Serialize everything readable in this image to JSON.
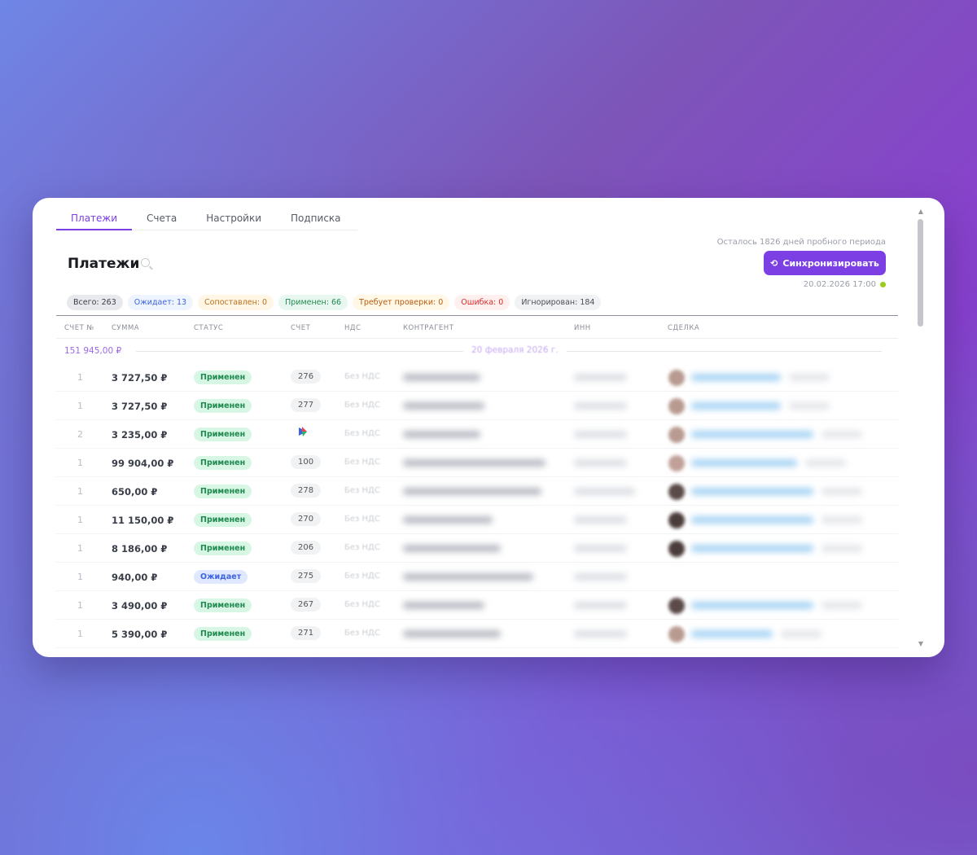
{
  "tabs": [
    {
      "label": "Платежи",
      "active": true
    },
    {
      "label": "Счета"
    },
    {
      "label": "Настройки"
    },
    {
      "label": "Подписка"
    }
  ],
  "page_title": "Платежи",
  "trial_text": "Осталось 1826 дней пробного периода",
  "sync_button": "Синхронизировать",
  "sync_date": "20.02.2026 17:00",
  "sync_status_color": "#9ccc1a",
  "accent": "#7b3fe4",
  "chips": [
    {
      "label": "Всего: 263",
      "bg": "#e8e9ec",
      "fg": "#3a3e48"
    },
    {
      "label": "Ожидает: 13",
      "bg": "#eef5ff",
      "fg": "#3d63e0"
    },
    {
      "label": "Сопоставлен: 0",
      "bg": "#fff6e6",
      "fg": "#c0701a"
    },
    {
      "label": "Применен: 66",
      "bg": "#e8f8f0",
      "fg": "#1f8a50"
    },
    {
      "label": "Требует проверки: 0",
      "bg": "#fff8e6",
      "fg": "#b85a10"
    },
    {
      "label": "Ошибка: 0",
      "bg": "#fff0f0",
      "fg": "#e02a2a"
    },
    {
      "label": "Игнорирован: 184",
      "bg": "#f1f2f4",
      "fg": "#4a4e58"
    }
  ],
  "columns": [
    "СЧЕТ №",
    "СУММА",
    "СТАТУС",
    "СЧЕТ",
    "НДС",
    "КОНТРАГЕНТ",
    "ИНН",
    "СДЕЛКА"
  ],
  "group": {
    "sum": "151 945,00 ₽",
    "date": "20 февраля 2026 г."
  },
  "rows": [
    {
      "num": "1",
      "sum": "3 727,50 ₽",
      "status": "Применен",
      "account": "276",
      "nds": "Без НДС",
      "deal": true
    },
    {
      "num": "1",
      "sum": "3 727,50 ₽",
      "status": "Применен",
      "account": "277",
      "nds": "Без НДС",
      "deal": true
    },
    {
      "num": "2",
      "sum": "3 235,00 ₽",
      "status": "Применен",
      "account": "",
      "account_icon": "multicolor-logo-icon",
      "nds": "Без НДС",
      "deal": true
    },
    {
      "num": "1",
      "sum": "99 904,00 ₽",
      "status": "Применен",
      "account": "100",
      "nds": "Без НДС",
      "deal": true
    },
    {
      "num": "1",
      "sum": "650,00 ₽",
      "status": "Применен",
      "account": "278",
      "nds": "Без НДС",
      "deal": true
    },
    {
      "num": "1",
      "sum": "11 150,00 ₽",
      "status": "Применен",
      "account": "270",
      "nds": "Без НДС",
      "deal": true
    },
    {
      "num": "1",
      "sum": "8 186,00 ₽",
      "status": "Применен",
      "account": "206",
      "nds": "Без НДС",
      "deal": true
    },
    {
      "num": "1",
      "sum": "940,00 ₽",
      "status": "Ожидает",
      "account": "275",
      "nds": "Без НДС",
      "deal": false
    },
    {
      "num": "1",
      "sum": "3 490,00 ₽",
      "status": "Применен",
      "account": "267",
      "nds": "Без НДС",
      "deal": true
    },
    {
      "num": "1",
      "sum": "5 390,00 ₽",
      "status": "Применен",
      "account": "271",
      "nds": "Без НДС",
      "deal": true
    }
  ]
}
